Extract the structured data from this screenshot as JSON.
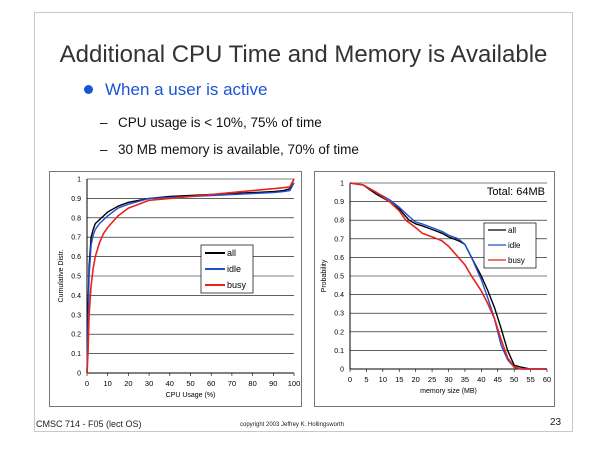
{
  "slide": {
    "title": "Additional CPU Time and Memory is Available",
    "bullet": "When a user is active",
    "sub_bullets": [
      "CPU usage is < 10%, 75% of time",
      "30 MB memory is available, 70% of time"
    ],
    "footer_left": "CMSC 714 - F05 (lect OS)",
    "footer_center": "copyright 2003 Jeffrey K. Hollingsworth",
    "page_number": "23",
    "colors": {
      "bullet": "#1a55d6",
      "title": "#333333"
    }
  },
  "chart_data": [
    {
      "type": "line",
      "xlabel": "CPU Usage (%)",
      "ylabel": "Cumulative Distr.",
      "xlim": [
        0,
        100
      ],
      "ylim": [
        0,
        1
      ],
      "x_ticks": [
        0,
        10,
        20,
        30,
        40,
        50,
        60,
        70,
        80,
        90,
        100
      ],
      "y_ticks": [
        0,
        0.1,
        0.2,
        0.3,
        0.4,
        0.5,
        0.6,
        0.7,
        0.8,
        0.9,
        1
      ],
      "grid": "horizontal",
      "legend_position": "right-center",
      "series": [
        {
          "name": "all",
          "color": "#000000",
          "x": [
            0,
            0.5,
            1,
            2,
            3,
            4,
            6,
            8,
            10,
            15,
            20,
            30,
            40,
            50,
            60,
            70,
            80,
            90,
            95,
            98,
            100
          ],
          "y": [
            0,
            0.3,
            0.55,
            0.7,
            0.74,
            0.77,
            0.79,
            0.81,
            0.83,
            0.86,
            0.88,
            0.9,
            0.91,
            0.915,
            0.92,
            0.925,
            0.93,
            0.935,
            0.94,
            0.95,
            1.0
          ]
        },
        {
          "name": "idle",
          "color": "#1f4fd0",
          "x": [
            0,
            0.5,
            1,
            2,
            3,
            4,
            6,
            8,
            10,
            15,
            20,
            30,
            40,
            50,
            60,
            70,
            80,
            90,
            95,
            98,
            100
          ],
          "y": [
            0,
            0.25,
            0.5,
            0.66,
            0.71,
            0.74,
            0.77,
            0.79,
            0.81,
            0.85,
            0.87,
            0.9,
            0.905,
            0.91,
            0.915,
            0.92,
            0.925,
            0.93,
            0.935,
            0.94,
            0.98
          ]
        },
        {
          "name": "busy",
          "color": "#e8231e",
          "x": [
            0,
            0.5,
            1,
            2,
            3,
            4,
            6,
            8,
            10,
            15,
            20,
            25,
            30,
            40,
            50,
            60,
            70,
            80,
            90,
            95,
            98,
            100
          ],
          "y": [
            0,
            0.1,
            0.3,
            0.45,
            0.54,
            0.6,
            0.67,
            0.72,
            0.75,
            0.81,
            0.85,
            0.87,
            0.89,
            0.9,
            0.91,
            0.92,
            0.93,
            0.94,
            0.95,
            0.955,
            0.96,
            1.0
          ]
        }
      ]
    },
    {
      "type": "line",
      "title": "Total: 64MB",
      "xlabel": "memory size (MB)",
      "ylabel": "Probability",
      "xlim": [
        0,
        60
      ],
      "ylim": [
        0,
        1
      ],
      "x_ticks": [
        0,
        5,
        10,
        15,
        20,
        25,
        30,
        35,
        40,
        45,
        50,
        55,
        60
      ],
      "y_ticks": [
        0,
        0.1,
        0.2,
        0.3,
        0.4,
        0.5,
        0.6,
        0.7,
        0.8,
        0.9,
        1
      ],
      "grid": "horizontal",
      "legend_position": "right-center",
      "series": [
        {
          "name": "all",
          "color": "#000000",
          "x": [
            0,
            4,
            8,
            12,
            15,
            18,
            20,
            22,
            25,
            28,
            30,
            33,
            35,
            37,
            40,
            42,
            44,
            46,
            48,
            50,
            52,
            55,
            60
          ],
          "y": [
            1,
            0.99,
            0.94,
            0.9,
            0.86,
            0.8,
            0.78,
            0.77,
            0.75,
            0.73,
            0.71,
            0.69,
            0.67,
            0.6,
            0.5,
            0.42,
            0.33,
            0.22,
            0.1,
            0.02,
            0.01,
            0,
            0
          ]
        },
        {
          "name": "idle",
          "color": "#1f4fd0",
          "x": [
            0,
            4,
            8,
            12,
            15,
            18,
            20,
            22,
            25,
            28,
            30,
            33,
            35,
            37,
            40,
            42,
            44,
            46,
            48,
            50,
            52,
            55,
            60
          ],
          "y": [
            1,
            0.99,
            0.95,
            0.91,
            0.87,
            0.82,
            0.79,
            0.78,
            0.76,
            0.74,
            0.72,
            0.7,
            0.67,
            0.6,
            0.48,
            0.38,
            0.27,
            0.13,
            0.05,
            0.01,
            0,
            0,
            0
          ]
        },
        {
          "name": "busy",
          "color": "#e8231e",
          "x": [
            0,
            4,
            8,
            12,
            15,
            17,
            20,
            22,
            25,
            28,
            30,
            33,
            35,
            37,
            40,
            42,
            44,
            46,
            48,
            50,
            52,
            55,
            60
          ],
          "y": [
            1,
            0.99,
            0.95,
            0.9,
            0.85,
            0.8,
            0.76,
            0.73,
            0.71,
            0.69,
            0.66,
            0.6,
            0.56,
            0.5,
            0.42,
            0.35,
            0.27,
            0.16,
            0.06,
            0.01,
            0,
            0,
            0
          ]
        }
      ]
    }
  ]
}
